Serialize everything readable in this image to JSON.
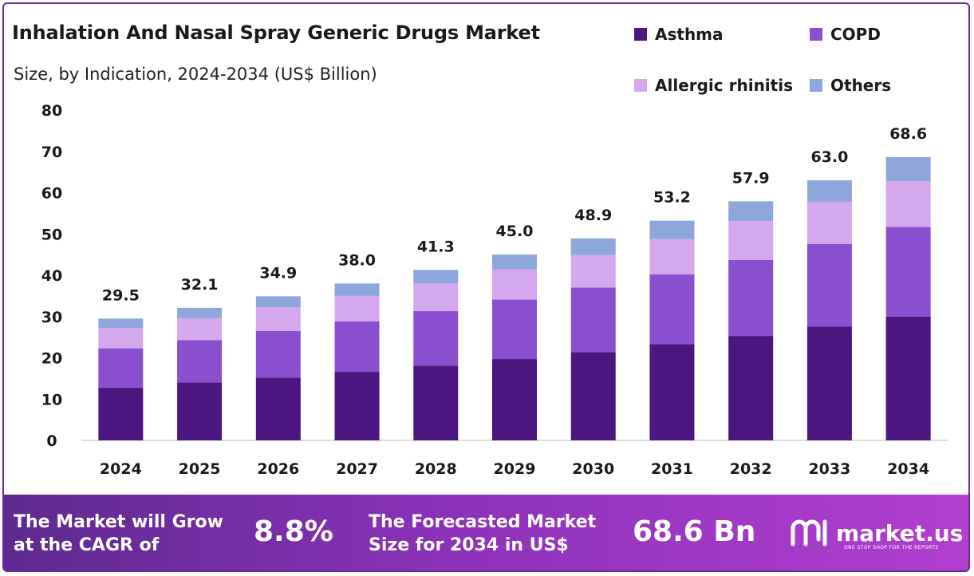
{
  "chart_data": {
    "type": "bar",
    "stacked": true,
    "title": "Inhalation And Nasal Spray Generic Drugs Market",
    "subtitle": "Size, by Indication, 2024-2034 (US$ Billion)",
    "categories": [
      "2024",
      "2025",
      "2026",
      "2027",
      "2028",
      "2029",
      "2030",
      "2031",
      "2032",
      "2033",
      "2034"
    ],
    "series": [
      {
        "name": "Asthma",
        "color": "#4b1680",
        "values": [
          12.8,
          14.0,
          15.2,
          16.6,
          18.1,
          19.7,
          21.4,
          23.3,
          25.3,
          27.6,
          30.0
        ]
      },
      {
        "name": "COPD",
        "color": "#8a4fcf",
        "values": [
          9.5,
          10.3,
          11.3,
          12.2,
          13.2,
          14.4,
          15.6,
          16.9,
          18.4,
          20.0,
          21.7
        ]
      },
      {
        "name": "Allergic rhinitis",
        "color": "#d4a8ec",
        "values": [
          4.9,
          5.3,
          5.7,
          6.2,
          6.7,
          7.3,
          7.9,
          8.6,
          9.4,
          10.2,
          11.1
        ]
      },
      {
        "name": "Others",
        "color": "#8ea6db",
        "values": [
          2.3,
          2.5,
          2.7,
          3.0,
          3.3,
          3.6,
          4.0,
          4.4,
          4.8,
          5.2,
          5.8
        ]
      }
    ],
    "totals": [
      "29.5",
      "32.1",
      "34.9",
      "38.0",
      "41.3",
      "45.0",
      "48.9",
      "53.2",
      "57.9",
      "63.0",
      "68.6"
    ],
    "yticks": [
      "0",
      "10",
      "20",
      "30",
      "40",
      "50",
      "60",
      "70",
      "80"
    ],
    "ylim": [
      0,
      80
    ],
    "legend_position": "top-right"
  },
  "footer": {
    "cagr_text_line1": "The Market will Grow",
    "cagr_text_line2": "at the CAGR of",
    "cagr_value": "8.8%",
    "forecast_text_line1": "The Forecasted Market",
    "forecast_text_line2": "Size for 2034 in US$",
    "forecast_value": "68.6 Bn",
    "logo_text": "market.us",
    "logo_tagline": "ONE STOP SHOP FOR THE REPORTS"
  }
}
